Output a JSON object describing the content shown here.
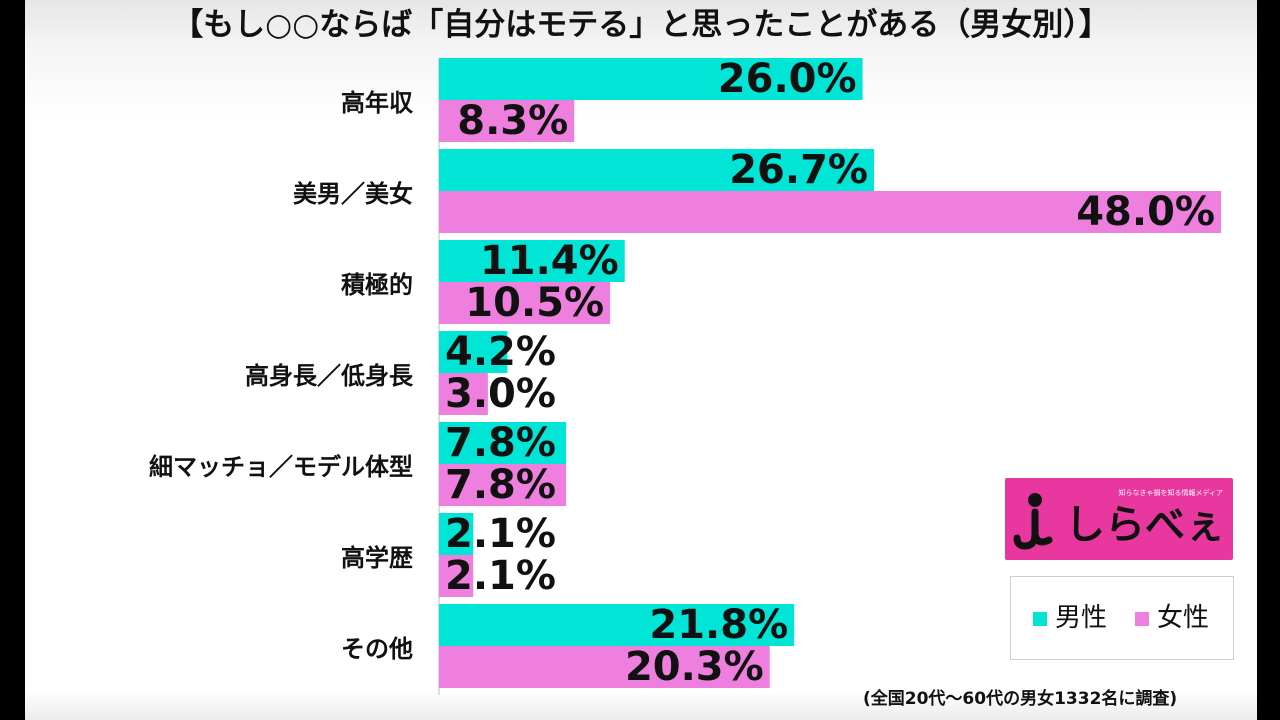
{
  "title": "【もし○○ならば「自分はモテる」と思ったことがある（男女別）】",
  "colors": {
    "male": "#00e5d6",
    "female": "#ee7fde"
  },
  "chart_data": {
    "type": "bar",
    "orientation": "horizontal",
    "title": "【もし○○ならば「自分はモテる」と思ったことがある（男女別）】",
    "categories": [
      "高年収",
      "美男／美女",
      "積極的",
      "高身長／低身長",
      "細マッチョ／モデル体型",
      "高学歴",
      "その他"
    ],
    "series": [
      {
        "name": "男性",
        "values": [
          26.0,
          26.7,
          11.4,
          4.2,
          7.8,
          2.1,
          21.8
        ],
        "labels": [
          "26.0%",
          "26.7%",
          "11.4%",
          "4.2%",
          "7.8%",
          "2.1%",
          "21.8%"
        ]
      },
      {
        "name": "女性",
        "values": [
          8.3,
          48.0,
          10.5,
          3.0,
          7.8,
          2.1,
          20.3
        ],
        "labels": [
          "8.3%",
          "48.0%",
          "10.5%",
          "3.0%",
          "7.8%",
          "2.1%",
          "20.3%"
        ]
      }
    ],
    "xlim": [
      0,
      48
    ],
    "unit": "%",
    "legend": "bottom-right",
    "grid": false
  },
  "legend": {
    "male_label": "男性",
    "female_label": "女性"
  },
  "logo": {
    "small_text": "知らなきゃ損を知る情報メディア",
    "text": "しらべぇ",
    "icon": "shirabee-logo-icon"
  },
  "footnote": "(全国20代～60代の男女1332名に調査)"
}
